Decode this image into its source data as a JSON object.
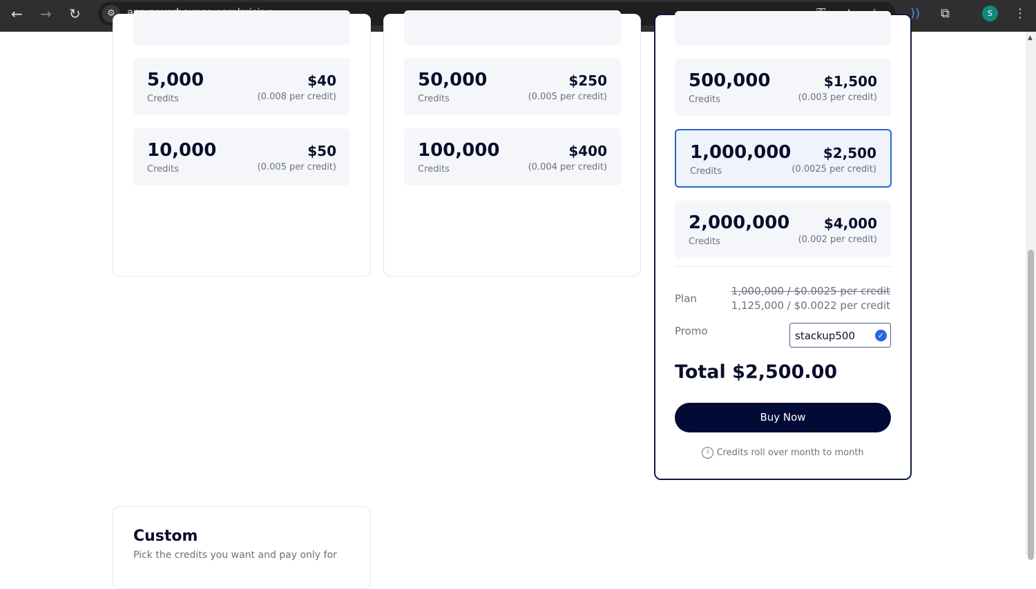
{
  "browser": {
    "url": "app.neverbounce.com/pricing",
    "avatar_letter": "S"
  },
  "columns": [
    {
      "tiles": [
        {
          "credits": "5,000",
          "unit": "Credits",
          "price": "$40",
          "per": "(0.008 per credit)"
        },
        {
          "credits": "10,000",
          "unit": "Credits",
          "price": "$50",
          "per": "(0.005 per credit)"
        }
      ]
    },
    {
      "tiles": [
        {
          "credits": "50,000",
          "unit": "Credits",
          "price": "$250",
          "per": "(0.005 per credit)"
        },
        {
          "credits": "100,000",
          "unit": "Credits",
          "price": "$400",
          "per": "(0.004 per credit)"
        }
      ]
    },
    {
      "tiles": [
        {
          "credits": "500,000",
          "unit": "Credits",
          "price": "$1,500",
          "per": "(0.003 per credit)"
        },
        {
          "credits": "1,000,000",
          "unit": "Credits",
          "price": "$2,500",
          "per": "(0.0025 per credit)",
          "selected": true
        },
        {
          "credits": "2,000,000",
          "unit": "Credits",
          "price": "$4,000",
          "per": "(0.002 per credit)"
        }
      ]
    }
  ],
  "summary": {
    "plan_label": "Plan",
    "plan_old": "1,000,000 / $0.0025 per credit",
    "plan_new": "1,125,000 / $0.0022 per credit",
    "promo_label": "Promo",
    "promo_value": "stackup500",
    "total": "Total $2,500.00",
    "buy": "Buy Now",
    "note": "Credits roll over month to month"
  },
  "custom": {
    "title": "Custom",
    "desc": "Pick the credits you want and pay only for"
  },
  "colors": {
    "navy": "#020b35",
    "accent": "#2a64c5"
  }
}
